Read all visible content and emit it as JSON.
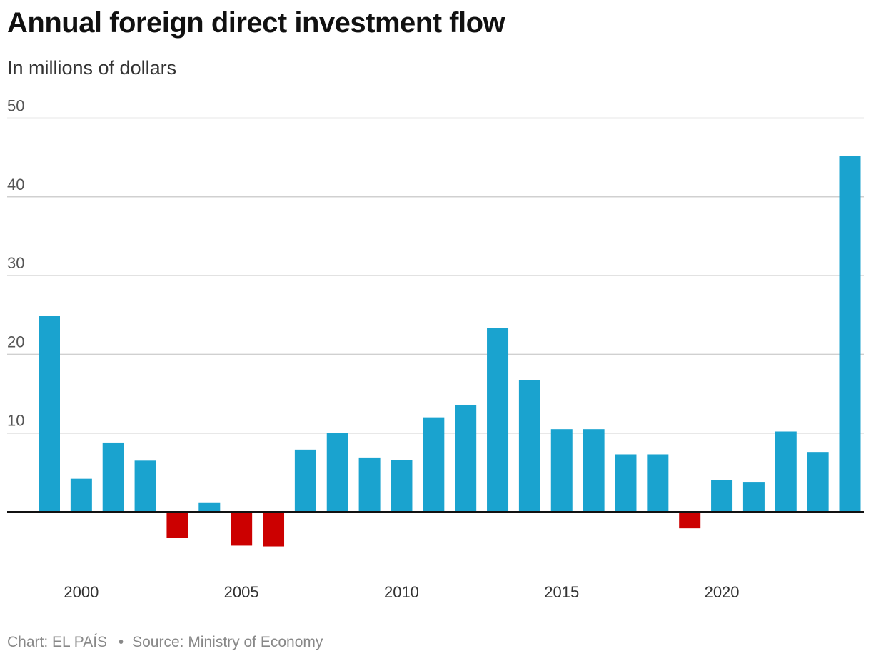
{
  "title": "Annual foreign direct investment flow",
  "subtitle": "In millions of dollars",
  "footer": {
    "chart_credit": "Chart: EL PAÍS",
    "separator": "•",
    "source": "Source: Ministry of Economy"
  },
  "colors": {
    "positive": "#1aa3cf",
    "negative": "#cc0000",
    "gridline": "#d0d0d0",
    "baseline": "#111111"
  },
  "chart_data": {
    "type": "bar",
    "title": "Annual foreign direct investment flow",
    "subtitle": "In millions of dollars",
    "xlabel": "",
    "ylabel": "",
    "ylim": [
      -7,
      50
    ],
    "yticks": [
      10,
      20,
      30,
      40,
      50
    ],
    "xticks": [
      2000,
      2005,
      2010,
      2015,
      2020
    ],
    "grid": true,
    "legend": "none",
    "x": [
      1999,
      2000,
      2001,
      2002,
      2003,
      2004,
      2005,
      2006,
      2007,
      2008,
      2009,
      2010,
      2011,
      2012,
      2013,
      2014,
      2015,
      2016,
      2017,
      2018,
      2019,
      2020,
      2021,
      2022,
      2023,
      2024
    ],
    "values": [
      24.9,
      4.2,
      8.8,
      6.5,
      -3.3,
      1.2,
      -4.3,
      -4.4,
      7.9,
      10.0,
      6.9,
      6.6,
      12.0,
      13.6,
      23.3,
      16.7,
      10.5,
      10.5,
      7.3,
      7.3,
      -2.1,
      4.0,
      3.8,
      10.2,
      7.6,
      45.2
    ]
  }
}
